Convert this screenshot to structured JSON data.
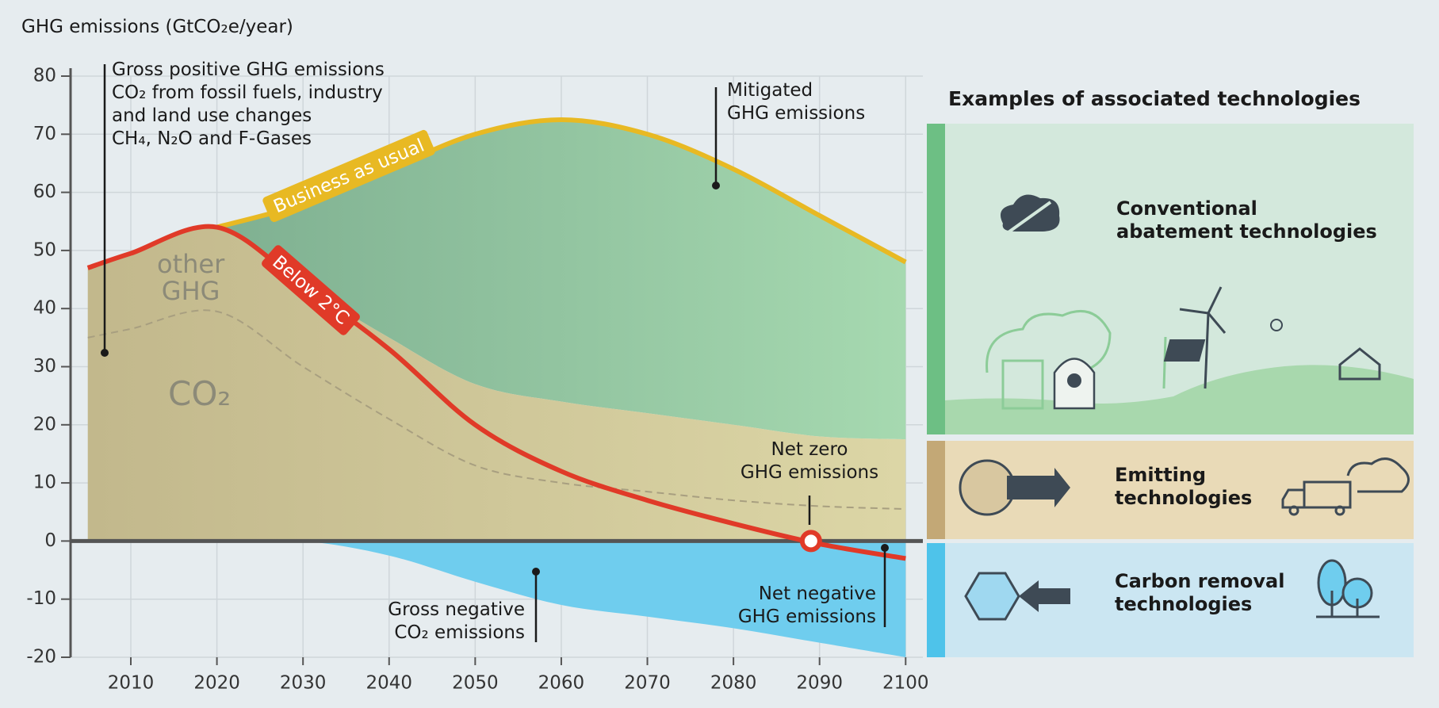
{
  "chart_data": {
    "type": "area",
    "y_label": "GHG emissions (GtCO₂e/year)",
    "x": [
      2005,
      2010,
      2020,
      2030,
      2040,
      2050,
      2060,
      2070,
      2080,
      2090,
      2100
    ],
    "series": [
      {
        "name": "Business as usual",
        "color": "#e8b923",
        "values": [
          null,
          null,
          54,
          58,
          64,
          70,
          72.5,
          70,
          64,
          56,
          48
        ]
      },
      {
        "name": "Below 2°C",
        "color": "#e03a28",
        "values": [
          47,
          49.5,
          54,
          44,
          33,
          20,
          12,
          7,
          3,
          -0.5,
          -3
        ]
      },
      {
        "name": "other\nGHG",
        "color": "#cbc394",
        "values": [
          47,
          49.5,
          54,
          44,
          35,
          27,
          24,
          22,
          20,
          18,
          17.5
        ]
      },
      {
        "name": "CO₂",
        "color": "#a89f80",
        "values": [
          35,
          36.5,
          39.5,
          30,
          21,
          13,
          10,
          8.5,
          7,
          6,
          5.5
        ]
      },
      {
        "name": "Gross negative\nCO₂ emissions",
        "color": "#6fcdee",
        "values": [
          0,
          0,
          0,
          0,
          -2.5,
          -7,
          -11,
          -13,
          -15,
          -17.5,
          -20
        ]
      }
    ],
    "xlim": [
      2003,
      2102
    ],
    "ylim": [
      -20,
      80
    ],
    "xticks": [
      2010,
      2020,
      2030,
      2040,
      2050,
      2060,
      2070,
      2080,
      2090,
      2100
    ],
    "yticks": [
      -20,
      -10,
      0,
      10,
      20,
      30,
      40,
      50,
      60,
      70,
      80
    ],
    "grid": true,
    "net_zero": {
      "label": "Net zero\nGHG emissions",
      "x": 2089,
      "y": 0
    },
    "annotations": [
      "Gross positive GHG emissions\nCO₂ from fossil fuels, industry\nand land use changes\nCH₄, N₂O and F-Gases",
      "Mitigated\nGHG emissions",
      "Net negative\nGHG emissions"
    ]
  },
  "panel": {
    "title": "Examples of associated technologies",
    "items": [
      "Conventional\nabatement technologies",
      "Emitting\ntechnologies",
      "Carbon removal\ntechnologies"
    ]
  }
}
